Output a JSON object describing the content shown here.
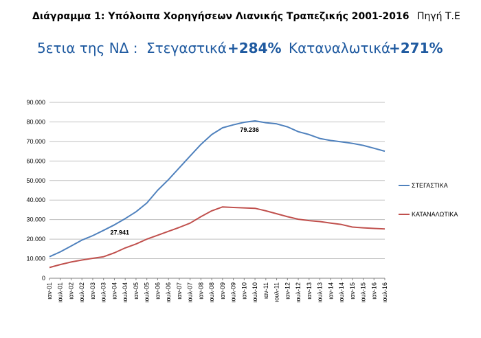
{
  "header": {
    "title": "Διάγραμμα 1: Υπόλοιπα Χορηγήσεων Λιανικής Τραπεζικής 2001-2016",
    "source": "Πηγή Τ.Ε"
  },
  "headline": {
    "prefix": "5ετια της ΝΔ :",
    "housing_label": "Στεγαστικά",
    "housing_change": "+284%",
    "consumer_label": "Καταναλωτικά",
    "consumer_change": "+271%"
  },
  "chart_data": {
    "type": "line",
    "title": "",
    "xlabel": "",
    "ylabel": "",
    "ylim": [
      0,
      90000
    ],
    "yticks": [
      "0",
      "10.000",
      "20.000",
      "30.000",
      "40.000",
      "50.000",
      "60.000",
      "70.000",
      "80.000",
      "90.000"
    ],
    "grid": true,
    "legend": "right",
    "x_tick_labels": [
      "ιαν-01",
      "ιουλ-01",
      "ιαν-02",
      "ιουλ-02",
      "ιαν-03",
      "ιουλ-03",
      "ιαν-04",
      "ιουλ-04",
      "ιαν-05",
      "ιουλ-05",
      "ιαν-06",
      "ιουλ-06",
      "ιαν-07",
      "ιουλ-07",
      "ιαν-08",
      "ιουλ-08",
      "ιαν-09",
      "ιουλ-09",
      "ιαν-10",
      "ιουλ-10",
      "ιαν-11",
      "ιουλ-11",
      "ιαν-12",
      "ιουλ-12",
      "ιαν-13",
      "ιουλ-13",
      "ιαν-14",
      "ιουλ-14",
      "ιαν-15",
      "ιουλ-15",
      "ιαν-16",
      "ιουλ-16"
    ],
    "series": [
      {
        "name": "ΣΤΕΓΑΣΤΙΚΑ",
        "color": "#4f81bd",
        "values": [
          11000,
          13500,
          16500,
          19500,
          21800,
          24500,
          27300,
          30500,
          34000,
          38500,
          45000,
          50500,
          56500,
          62500,
          68500,
          73500,
          77000,
          78500,
          79800,
          80500,
          79600,
          79000,
          77500,
          75000,
          73500,
          71500,
          70500,
          69800,
          69000,
          68000,
          66500,
          65000
        ]
      },
      {
        "name": "ΚΑΤΑΝΑΛΩΤΙΚΑ",
        "color": "#c0504d",
        "values": [
          5500,
          7000,
          8300,
          9300,
          10200,
          11000,
          13000,
          15500,
          17500,
          20000,
          22000,
          24000,
          26000,
          28200,
          31500,
          34500,
          36500,
          36200,
          36000,
          35800,
          34500,
          33000,
          31500,
          30200,
          29500,
          29000,
          28200,
          27500,
          26200,
          25800,
          25500,
          25200
        ]
      }
    ],
    "annotations": [
      {
        "label": "27.941",
        "series": "ΣΤΕΓΑΣΤΙΚΑ",
        "x": "ιαν-04"
      },
      {
        "label": "79.236",
        "series": "ΣΤΕΓΑΣΤΙΚΑ",
        "x": "ιαν-10"
      }
    ]
  }
}
